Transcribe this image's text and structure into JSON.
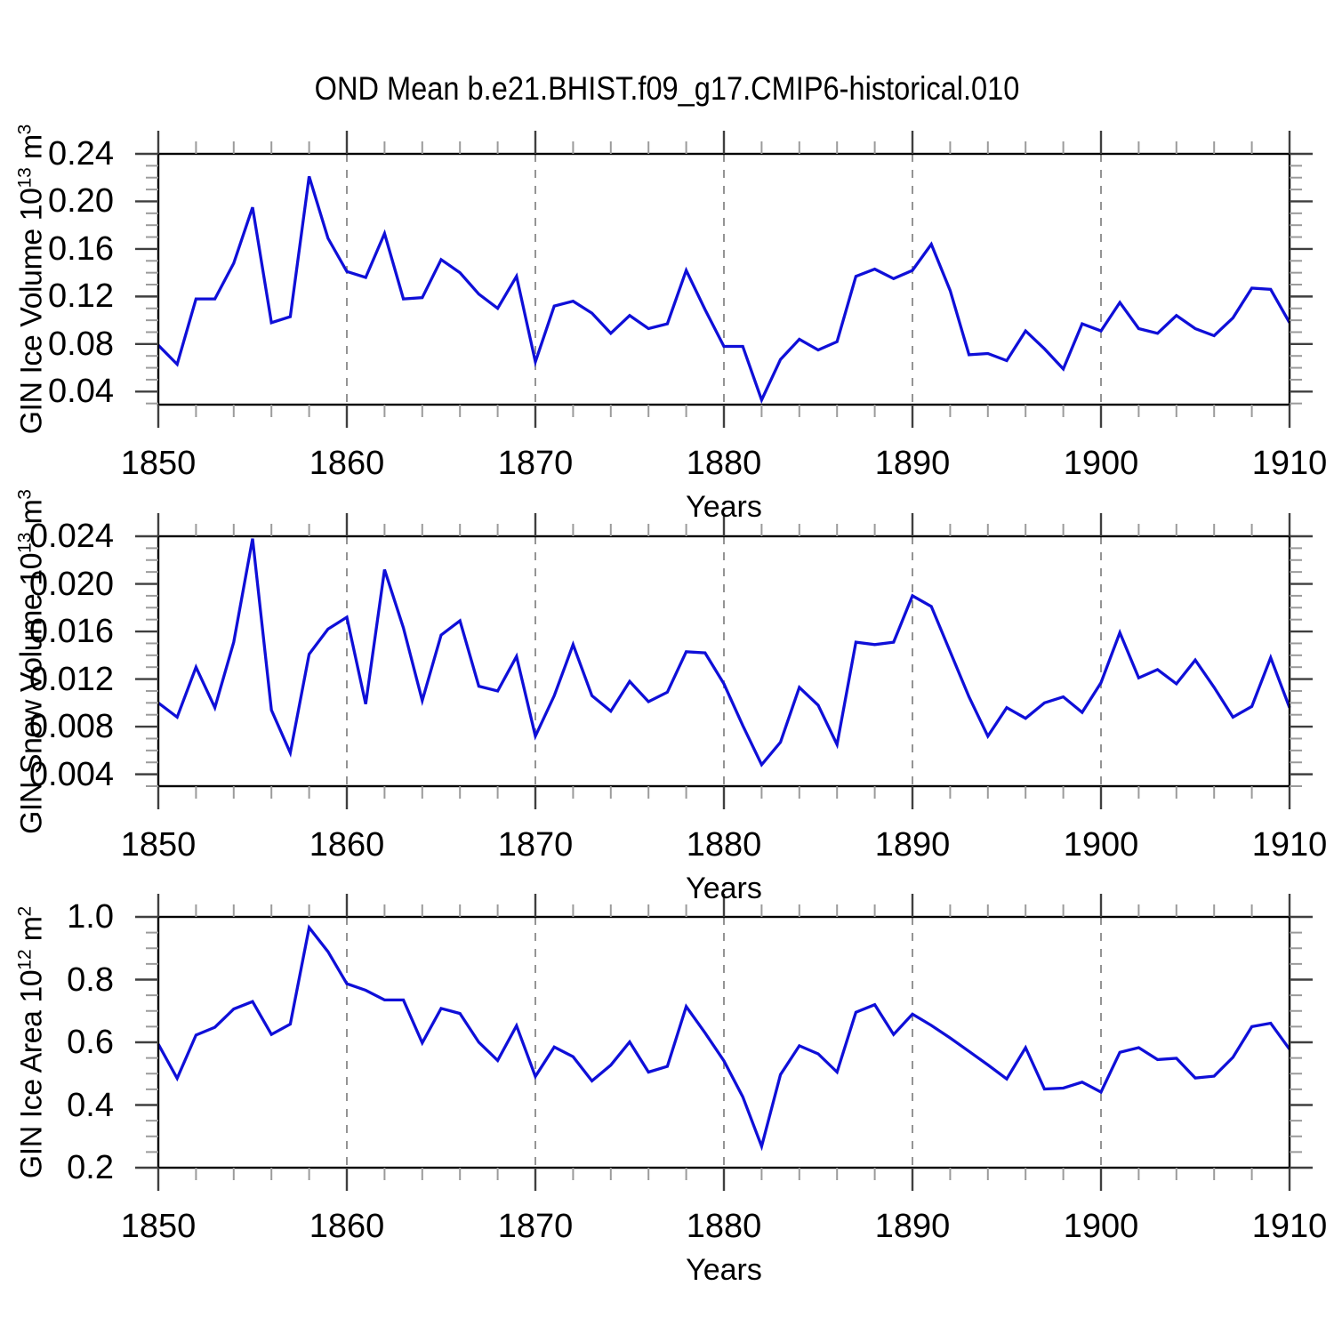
{
  "title": "OND Mean b.e21.BHIST.f09_g17.CMIP6-historical.010",
  "colors": {
    "line": "#0f0fd8",
    "frame": "#000000",
    "tick_major": "#3f3f3f",
    "tick_minor": "#9b9b9b",
    "gridline": "#949494",
    "background": "#ffffff",
    "text": "#000000"
  },
  "x_axis": {
    "label": "Years",
    "min": 1850,
    "max": 1910,
    "major_tick_step": 10,
    "minor_tick_step": 2,
    "tick_labels": [
      "1850",
      "1860",
      "1870",
      "1880",
      "1890",
      "1900",
      "1910"
    ],
    "gridline_years": [
      1860,
      1870,
      1880,
      1890,
      1900
    ]
  },
  "chart_data": [
    {
      "type": "line",
      "name": "gin-ice-volume",
      "ylabel_parts": [
        {
          "t": "GIN Ice Volume 10"
        },
        {
          "t": "13",
          "sup": true
        },
        {
          "t": " m"
        },
        {
          "t": "3",
          "sup": true
        }
      ],
      "x_years_range": [
        1850,
        1910
      ],
      "ylim": [
        0.029,
        0.24
      ],
      "yticks": [
        0.24,
        0.2,
        0.16,
        0.12,
        0.08,
        0.04
      ],
      "ytick_labels": [
        "0.24",
        "0.20",
        "0.16",
        "0.12",
        "0.08",
        "0.04"
      ],
      "ytick_minor_step": 0.01,
      "values": [
        0.079,
        0.063,
        0.118,
        0.118,
        0.148,
        0.195,
        0.098,
        0.103,
        0.221,
        0.169,
        0.141,
        0.136,
        0.173,
        0.118,
        0.119,
        0.151,
        0.14,
        0.122,
        0.11,
        0.137,
        0.065,
        0.112,
        0.116,
        0.106,
        0.089,
        0.104,
        0.093,
        0.097,
        0.142,
        0.109,
        0.078,
        0.078,
        0.033,
        0.067,
        0.084,
        0.075,
        0.082,
        0.137,
        0.143,
        0.135,
        0.142,
        0.164,
        0.125,
        0.071,
        0.072,
        0.066,
        0.091,
        0.076,
        0.059,
        0.097,
        0.091,
        0.115,
        0.093,
        0.089,
        0.104,
        0.093,
        0.087,
        0.102,
        0.127,
        0.126,
        0.098
      ]
    },
    {
      "type": "line",
      "name": "gin-snow-volume",
      "ylabel_parts": [
        {
          "t": "GIN Snow Volume 10"
        },
        {
          "t": "13",
          "sup": true
        },
        {
          "t": " m"
        },
        {
          "t": "3",
          "sup": true
        }
      ],
      "x_years_range": [
        1850,
        1910
      ],
      "ylim": [
        0.003,
        0.024
      ],
      "yticks": [
        0.024,
        0.02,
        0.016,
        0.012,
        0.008,
        0.004
      ],
      "ytick_labels": [
        "0.024",
        "0.020",
        "0.016",
        "0.012",
        "0.008",
        "0.004"
      ],
      "ytick_minor_step": 0.001,
      "values": [
        0.01,
        0.0088,
        0.013,
        0.0096,
        0.0151,
        0.0238,
        0.0094,
        0.0058,
        0.0141,
        0.0162,
        0.0172,
        0.0099,
        0.0212,
        0.0163,
        0.0102,
        0.0157,
        0.0169,
        0.0114,
        0.011,
        0.0139,
        0.0072,
        0.0106,
        0.0149,
        0.0106,
        0.0093,
        0.0118,
        0.0101,
        0.0109,
        0.0143,
        0.0142,
        0.0116,
        0.0081,
        0.0048,
        0.0067,
        0.0113,
        0.0098,
        0.0065,
        0.0151,
        0.0149,
        0.0151,
        0.019,
        0.0181,
        0.0143,
        0.0105,
        0.0072,
        0.0096,
        0.0087,
        0.01,
        0.0105,
        0.0092,
        0.0117,
        0.0159,
        0.0121,
        0.0128,
        0.0116,
        0.0136,
        0.0113,
        0.0088,
        0.0097,
        0.0138,
        0.0096
      ]
    },
    {
      "type": "line",
      "name": "gin-ice-area",
      "ylabel_parts": [
        {
          "t": "GIN Ice Area 10"
        },
        {
          "t": "12",
          "sup": true
        },
        {
          "t": " m"
        },
        {
          "t": "2",
          "sup": true
        }
      ],
      "x_years_range": [
        1850,
        1910
      ],
      "ylim": [
        0.2,
        1.0
      ],
      "yticks": [
        1.0,
        0.8,
        0.6,
        0.4,
        0.2
      ],
      "ytick_labels": [
        "1.0",
        "0.8",
        "0.6",
        "0.4",
        "0.2"
      ],
      "ytick_minor_step": 0.05,
      "values": [
        0.594,
        0.485,
        0.623,
        0.648,
        0.706,
        0.73,
        0.625,
        0.658,
        0.966,
        0.889,
        0.787,
        0.766,
        0.735,
        0.735,
        0.598,
        0.708,
        0.692,
        0.6,
        0.542,
        0.653,
        0.491,
        0.585,
        0.554,
        0.477,
        0.527,
        0.601,
        0.505,
        0.523,
        0.714,
        0.63,
        0.541,
        0.426,
        0.268,
        0.497,
        0.589,
        0.563,
        0.505,
        0.696,
        0.72,
        0.625,
        0.69,
        0.654,
        0.614,
        0.571,
        0.528,
        0.483,
        0.583,
        0.451,
        0.454,
        0.473,
        0.441,
        0.568,
        0.583,
        0.545,
        0.549,
        0.486,
        0.492,
        0.552,
        0.65,
        0.661,
        0.578
      ]
    }
  ]
}
